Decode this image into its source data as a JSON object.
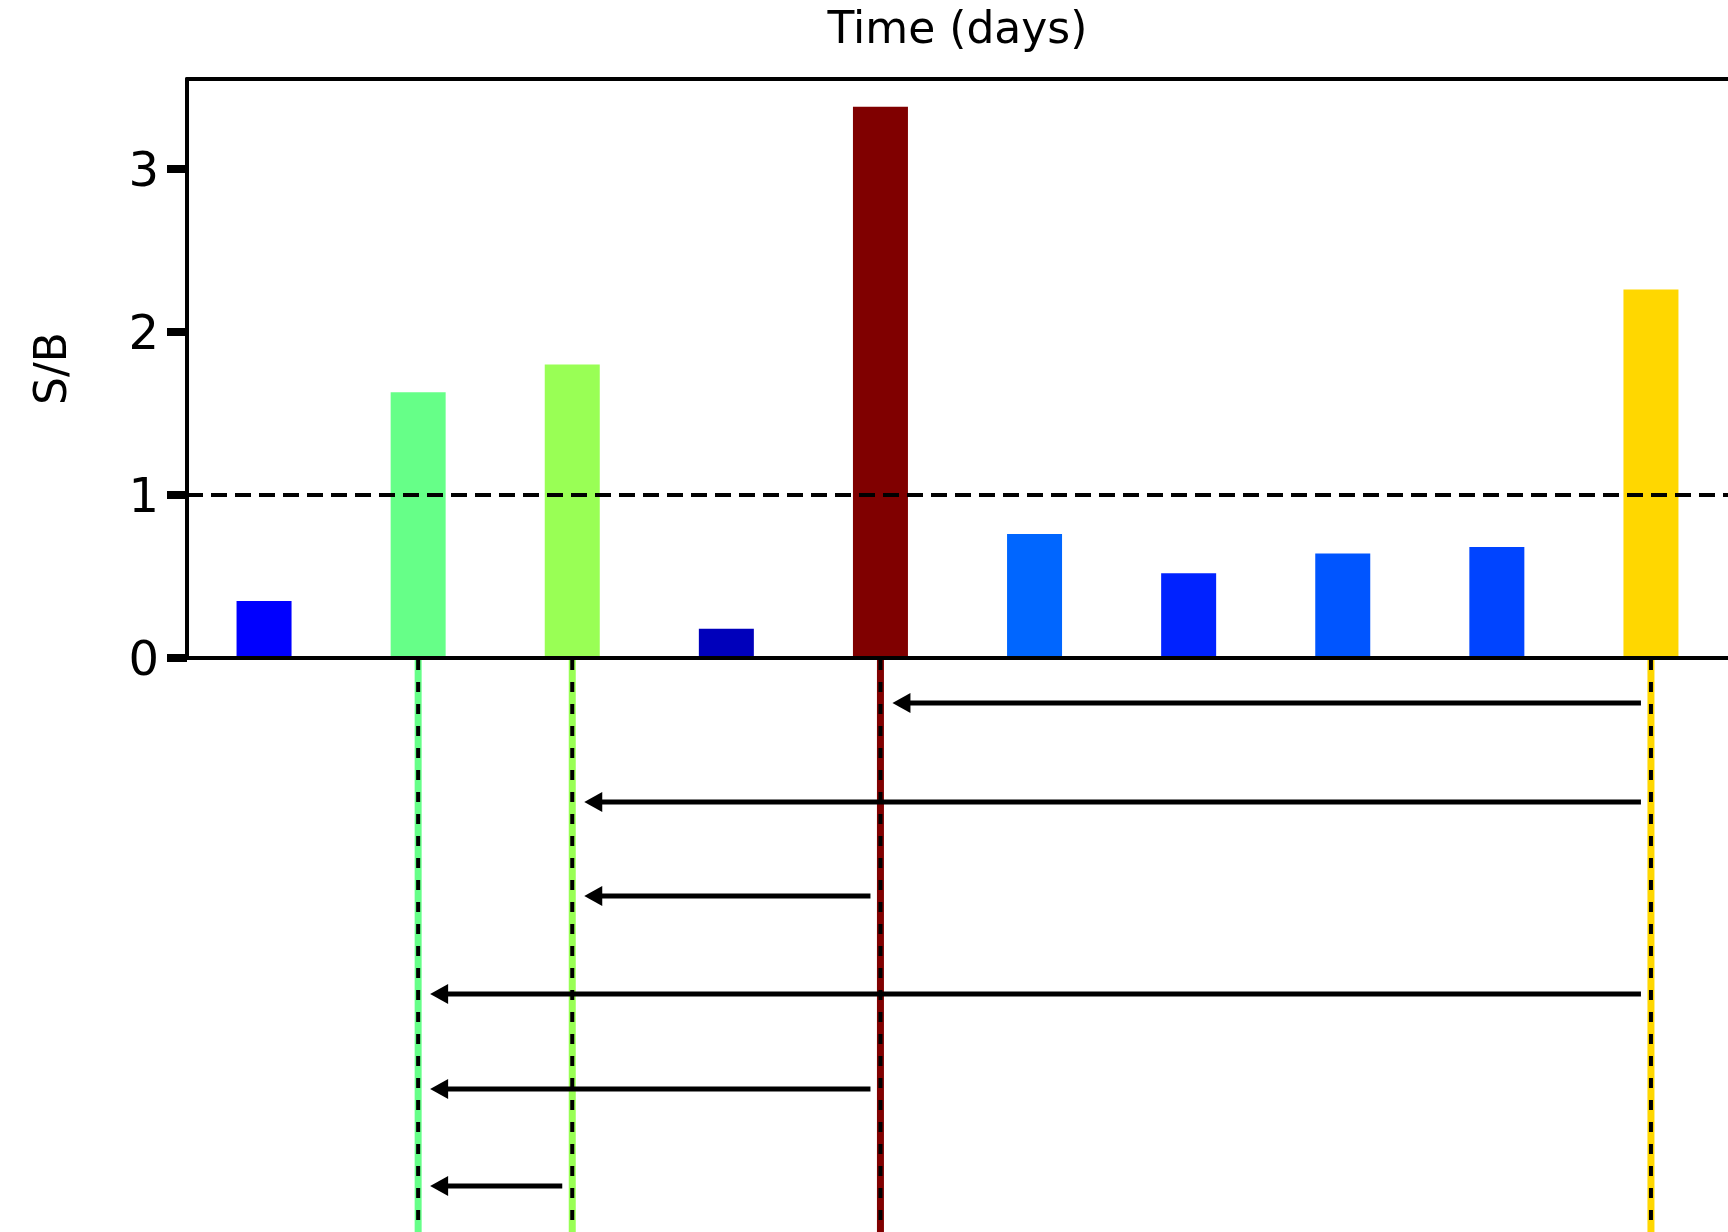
{
  "chart_data": {
    "type": "bar",
    "xlabel": "Time (days)",
    "ylabel": "S/B",
    "categories": [
      null,
      null,
      null,
      null,
      null,
      null,
      null,
      null,
      null,
      null
    ],
    "values": [
      0.35,
      1.63,
      1.8,
      0.18,
      3.38,
      0.76,
      0.52,
      0.64,
      0.68,
      2.26
    ],
    "colors": [
      "#0000ff",
      "#66ff88",
      "#99ff55",
      "#0000bb",
      "#800000",
      "#0066ff",
      "#0022ff",
      "#0055ff",
      "#0044ff",
      "#ffd700"
    ],
    "ylim": [
      0,
      3.55
    ],
    "yticks": [
      0,
      1,
      2,
      3
    ],
    "grid": false,
    "ref_lines": [
      {
        "axis": "y",
        "value": 1,
        "line_style": "dashed",
        "color": "#000000"
      }
    ]
  }
}
